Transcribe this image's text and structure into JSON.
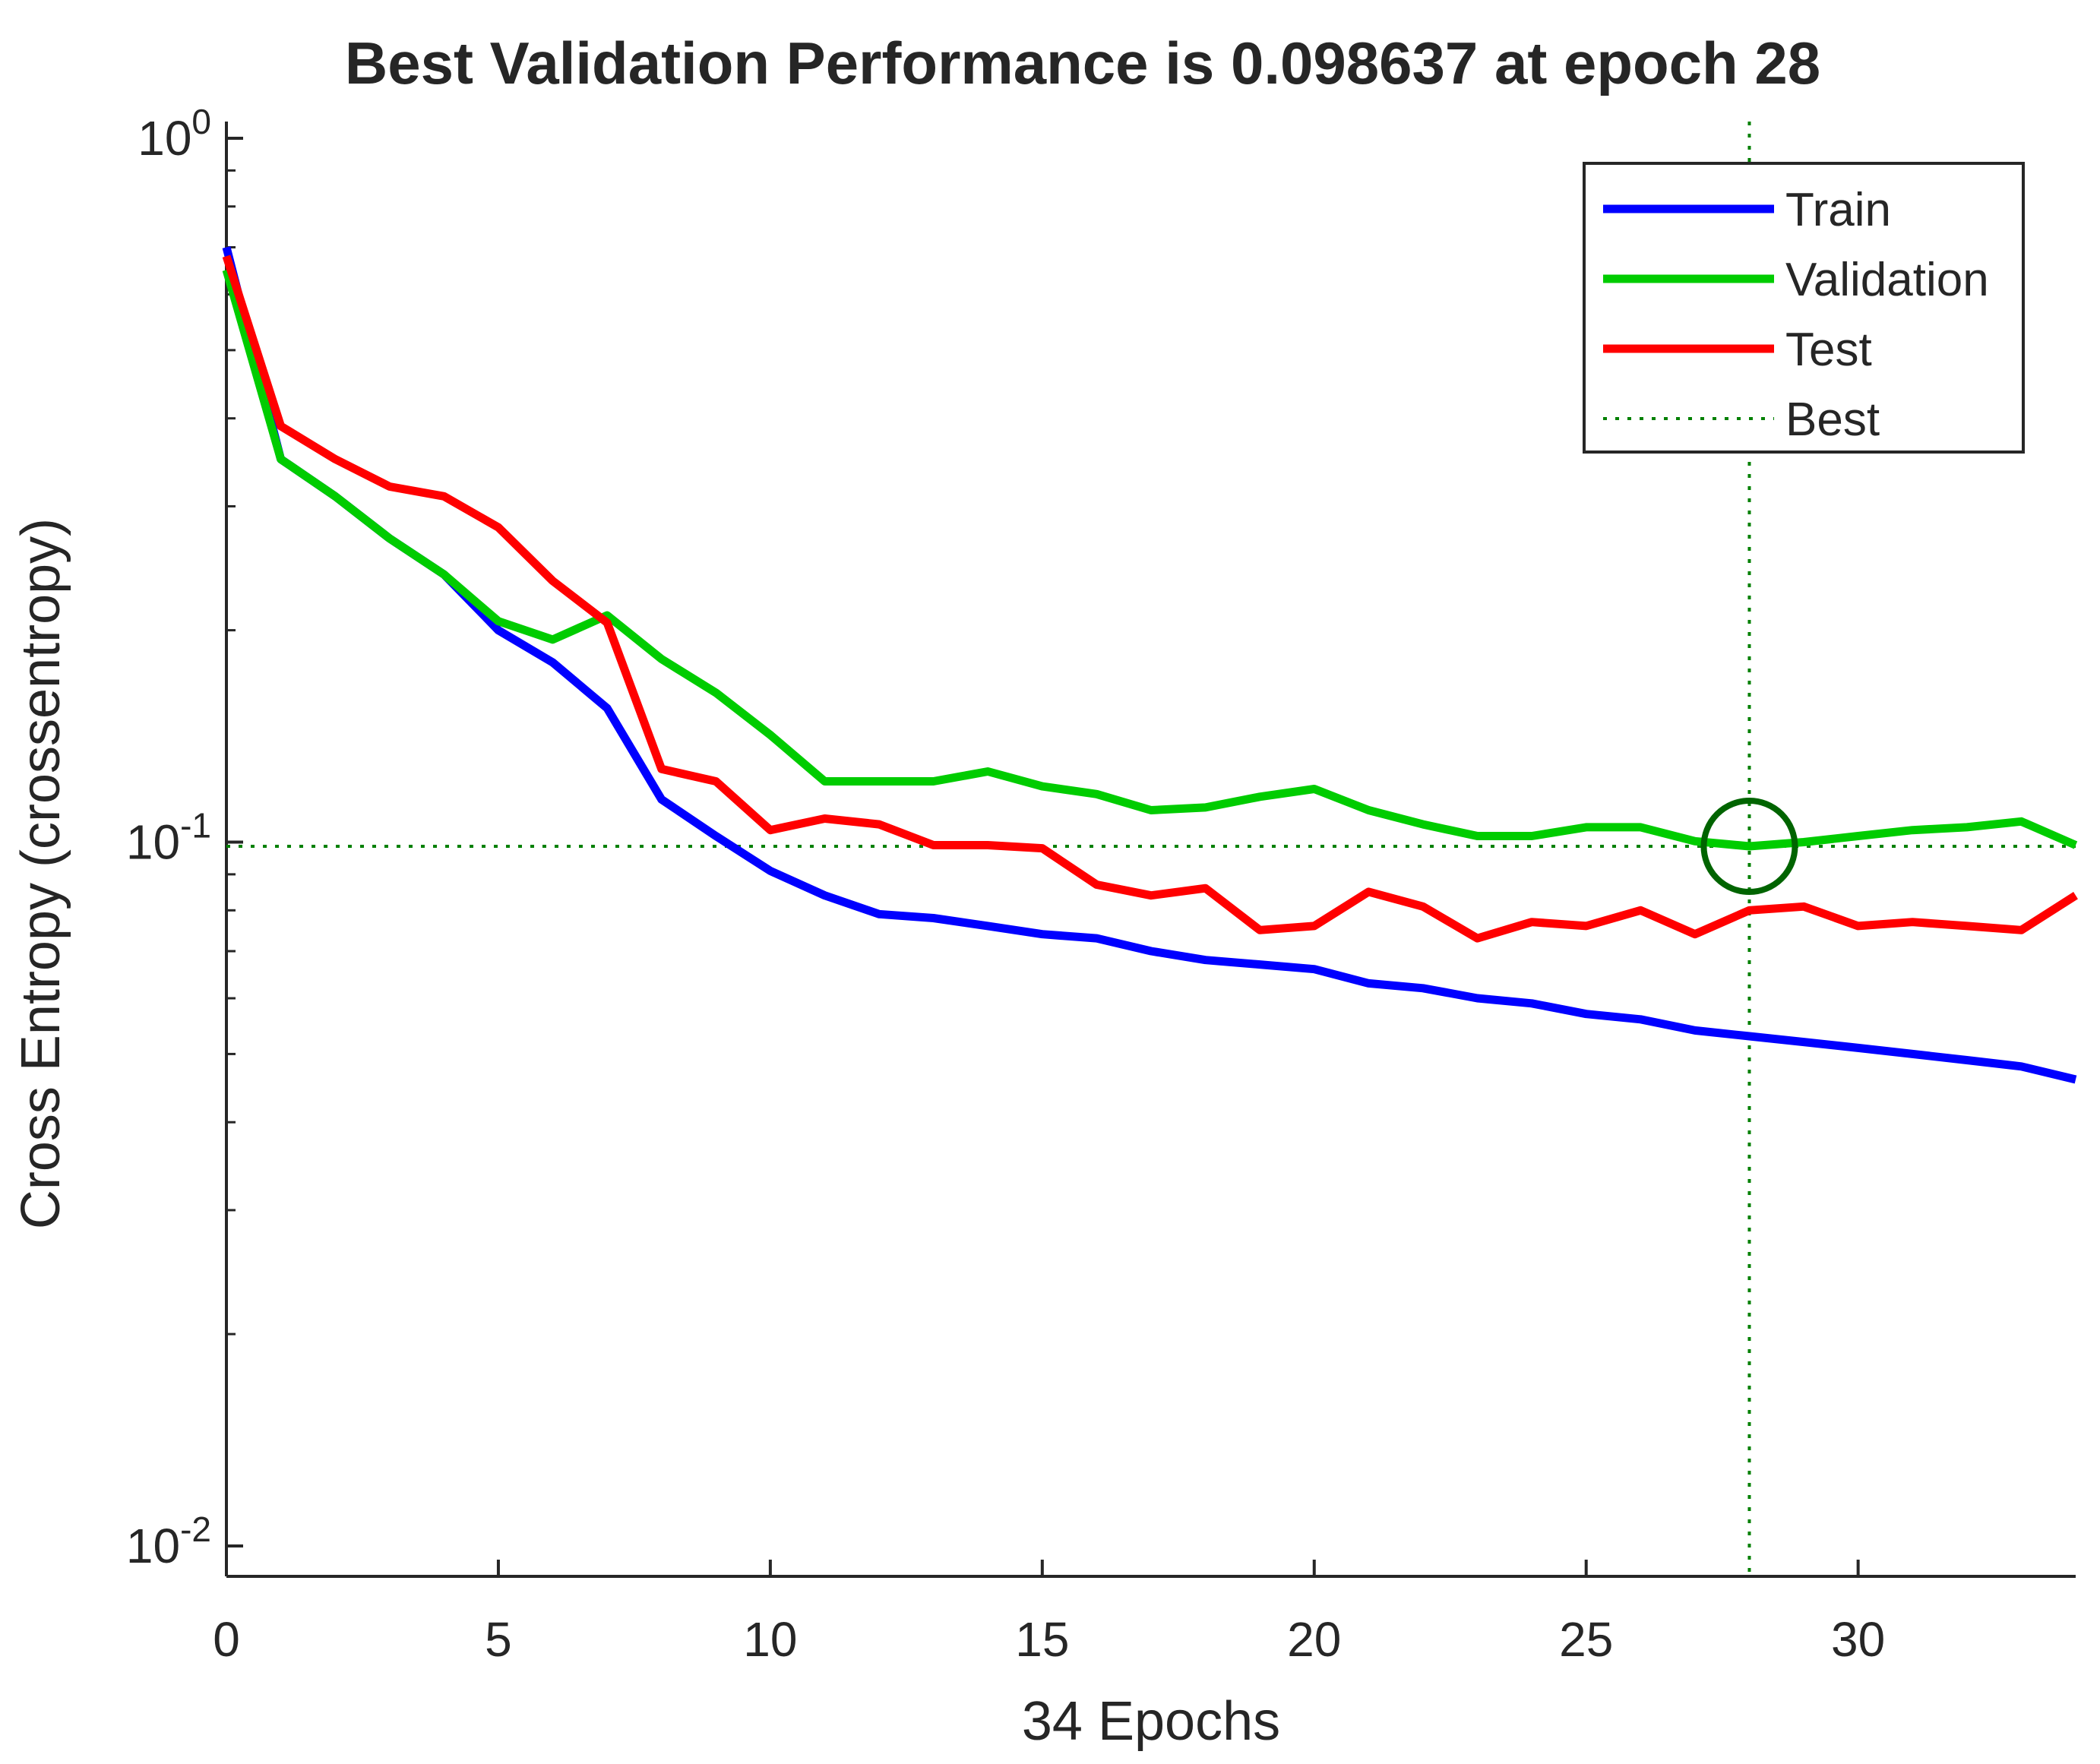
{
  "chart_data": {
    "type": "line",
    "title": "Best Validation Performance is 0.098637 at epoch 28",
    "xlabel": "34 Epochs",
    "ylabel": "Cross Entropy  (crossentropy)",
    "xlim": [
      0,
      34
    ],
    "ylim": [
      0.01,
      1
    ],
    "yscale": "log",
    "xticks": [
      0,
      5,
      10,
      15,
      20,
      25,
      30
    ],
    "xtick_labels": [
      "0",
      "5",
      "10",
      "15",
      "20",
      "25",
      "30"
    ],
    "yticks": [
      {
        "value": 1,
        "base": "10",
        "exp": "0"
      },
      {
        "value": 0.1,
        "base": "10",
        "exp": "-1"
      },
      {
        "value": 0.01,
        "base": "10",
        "exp": "-2"
      }
    ],
    "legend_position": "top-right",
    "x": [
      0,
      1,
      2,
      3,
      4,
      5,
      6,
      7,
      8,
      9,
      10,
      11,
      12,
      13,
      14,
      15,
      16,
      17,
      18,
      19,
      20,
      21,
      22,
      23,
      24,
      25,
      26,
      27,
      28,
      29,
      30,
      31,
      32,
      33,
      34
    ],
    "series": [
      {
        "name": "Train",
        "color": "#0000ff",
        "style": "solid",
        "values": [
          0.7,
          0.35,
          0.31,
          0.27,
          0.24,
          0.2,
          0.18,
          0.155,
          0.115,
          0.102,
          0.091,
          0.084,
          0.079,
          0.078,
          0.076,
          0.074,
          0.073,
          0.07,
          0.068,
          0.067,
          0.066,
          0.063,
          0.062,
          0.06,
          0.059,
          0.057,
          0.056,
          0.054,
          0.053,
          0.052,
          0.051,
          0.05,
          0.049,
          0.048,
          0.046
        ]
      },
      {
        "name": "Validation",
        "color": "#00cc00",
        "style": "solid",
        "values": [
          0.65,
          0.35,
          0.31,
          0.27,
          0.24,
          0.206,
          0.194,
          0.21,
          0.182,
          0.163,
          0.142,
          0.122,
          0.122,
          0.122,
          0.126,
          0.12,
          0.117,
          0.111,
          0.112,
          0.116,
          0.119,
          0.111,
          0.106,
          0.102,
          0.102,
          0.105,
          0.105,
          0.1003,
          0.098637,
          0.1,
          0.102,
          0.104,
          0.105,
          0.107,
          0.099
        ]
      },
      {
        "name": "Test",
        "color": "#ff0000",
        "style": "solid",
        "values": [
          0.68,
          0.39,
          0.35,
          0.32,
          0.31,
          0.28,
          0.235,
          0.205,
          0.127,
          0.122,
          0.104,
          0.108,
          0.106,
          0.099,
          0.099,
          0.098,
          0.087,
          0.084,
          0.086,
          0.075,
          0.076,
          0.085,
          0.081,
          0.073,
          0.077,
          0.076,
          0.08,
          0.074,
          0.08,
          0.081,
          0.076,
          0.077,
          0.076,
          0.075,
          0.084
        ]
      }
    ],
    "best": {
      "name": "Best",
      "color": "#008000",
      "style": "dotted",
      "epoch": 28,
      "value": 0.098637
    }
  }
}
